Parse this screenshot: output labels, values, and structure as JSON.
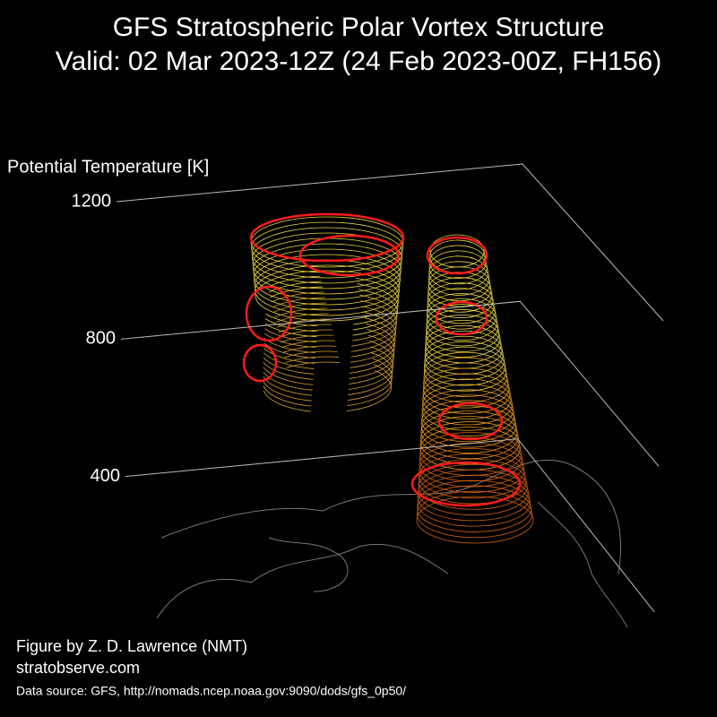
{
  "chart_data": {
    "type": "vortex-3d",
    "title": [
      "GFS Stratospheric Polar Vortex Structure",
      "Valid: 02 Mar 2023-12Z  (24 Feb 2023-00Z, FH156)"
    ],
    "ylabel": "Potential Temperature [K]",
    "ylim": [
      0,
      1200
    ],
    "yticks": [
      400,
      800,
      1200
    ],
    "credits": [
      "Figure by Z. D. Lawrence (NMT)",
      "stratobserve.com"
    ],
    "source": "Data source: GFS, http://nomads.ncep.noaa.gov:9090/dods/gfs_0p50/"
  }
}
